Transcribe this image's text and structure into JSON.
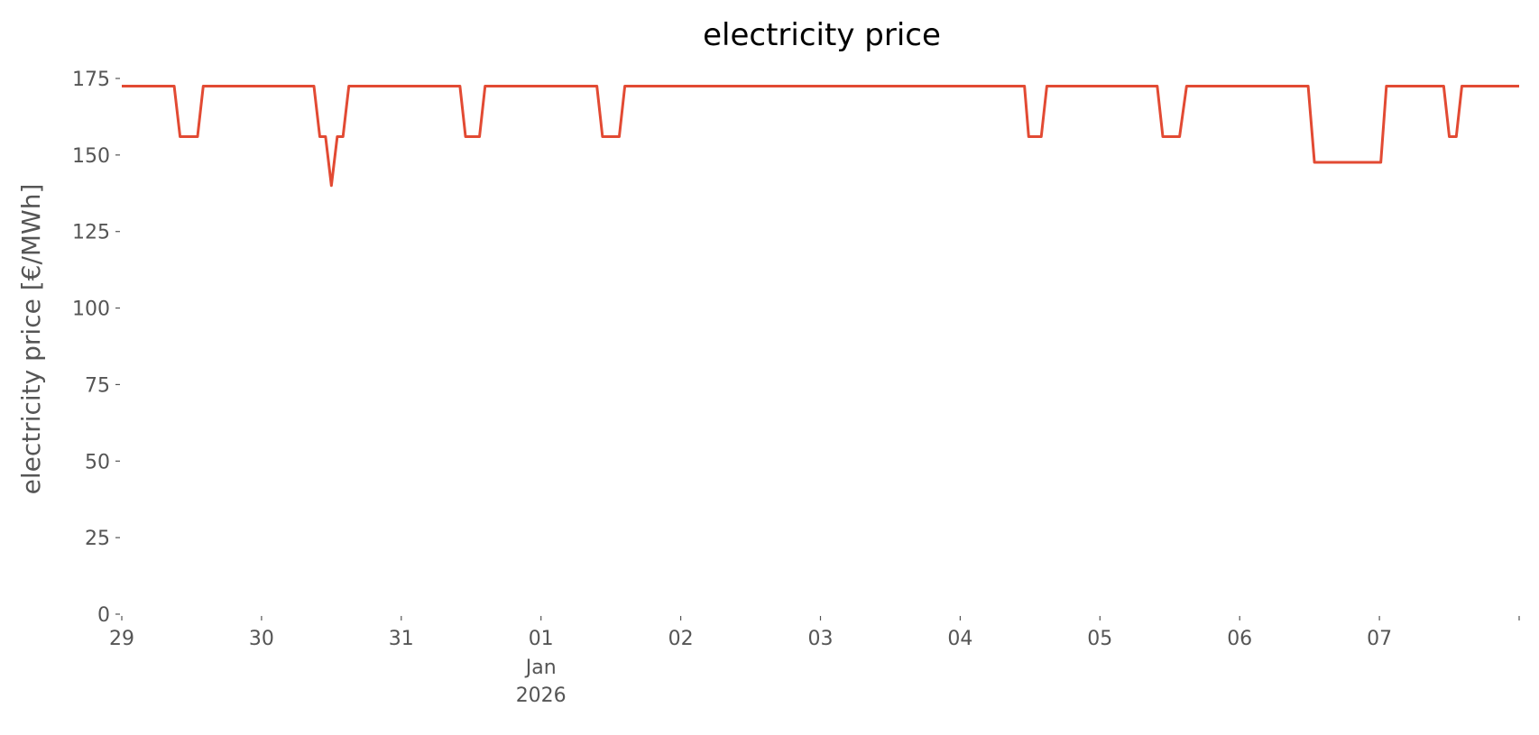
{
  "chart_data": {
    "type": "line",
    "title": "electricity price",
    "ylabel": "electricity price [€/MWh]",
    "x": [
      0,
      0.375,
      0.417,
      0.542,
      0.583,
      1.375,
      1.417,
      1.458,
      1.5,
      1.542,
      1.583,
      1.625,
      2.42,
      2.46,
      2.56,
      2.6,
      3.4,
      3.44,
      3.56,
      3.6,
      6.46,
      6.49,
      6.58,
      6.62,
      7.41,
      7.45,
      7.57,
      7.62,
      8.49,
      8.535,
      9.01,
      9.05,
      9.46,
      9.5,
      9.55,
      9.59,
      10
    ],
    "values": [
      172.5,
      172.5,
      156,
      156,
      172.5,
      172.5,
      156,
      156,
      140,
      156,
      156,
      172.5,
      172.5,
      156,
      156,
      172.5,
      172.5,
      156,
      156,
      172.5,
      172.5,
      156,
      156,
      172.5,
      172.5,
      156,
      156,
      172.5,
      172.5,
      147.6,
      147.6,
      172.5,
      172.5,
      156,
      156,
      172.5,
      172.5
    ],
    "color": "#E24A33",
    "xlim": [
      0,
      10
    ],
    "xticks": [
      {
        "value": 0,
        "label": "29"
      },
      {
        "value": 1,
        "label": "30"
      },
      {
        "value": 2,
        "label": "31"
      },
      {
        "value": 3,
        "label": "01",
        "sublabel": [
          "Jan",
          "2026"
        ]
      },
      {
        "value": 4,
        "label": "02"
      },
      {
        "value": 5,
        "label": "03"
      },
      {
        "value": 6,
        "label": "04"
      },
      {
        "value": 7,
        "label": "05"
      },
      {
        "value": 8,
        "label": "06"
      },
      {
        "value": 9,
        "label": "07"
      },
      {
        "value": 10,
        "label": null
      }
    ],
    "ylim": [
      0,
      175
    ],
    "yticks": [
      0,
      25,
      50,
      75,
      100,
      125,
      150,
      175
    ],
    "grid": false
  }
}
